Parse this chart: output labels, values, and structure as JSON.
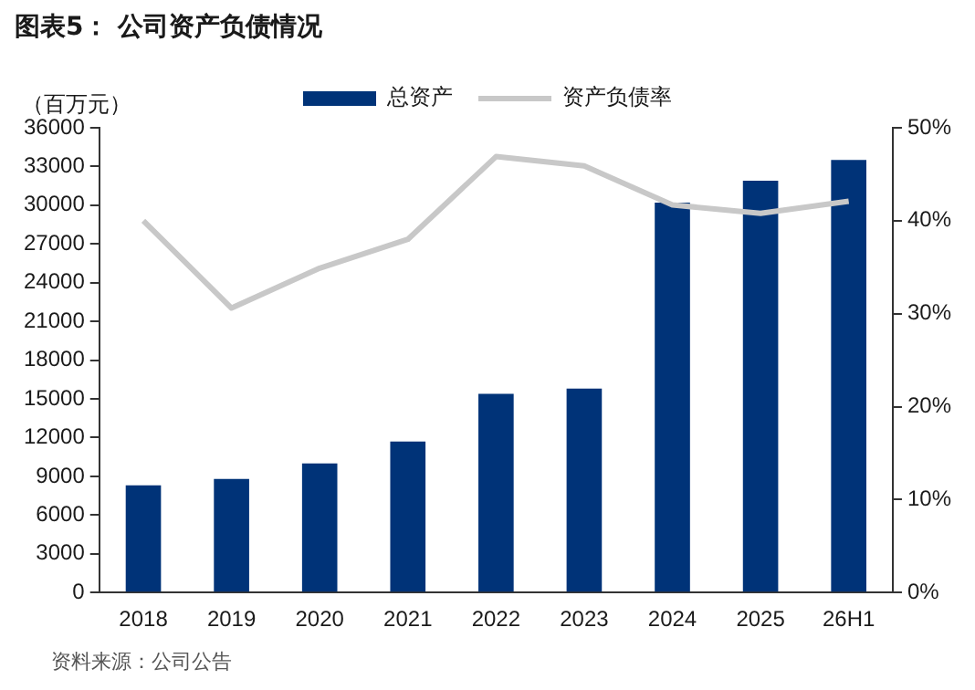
{
  "chart_data": {
    "type": "bar",
    "title": "图表5：  公司资产负债情况",
    "ylabel": "（百万元）",
    "categories": [
      "2018",
      "2019",
      "2020",
      "2021",
      "2022",
      "2023",
      "2024",
      "2025",
      "26H1"
    ],
    "series": [
      {
        "name": "总资产",
        "color": "#003378",
        "values": [
          8300,
          8800,
          10000,
          11700,
          15400,
          15800,
          30200,
          31900,
          33500
        ]
      },
      {
        "name": "资产负债率",
        "type": "line",
        "axis": "y2",
        "color": "#c8c8c8",
        "values": [
          40,
          30.6,
          34.9,
          38,
          46.9,
          45.9,
          41.7,
          40.8,
          42.1
        ]
      }
    ],
    "ylim": [
      0,
      36000
    ],
    "yticks": [
      0,
      3000,
      6000,
      9000,
      12000,
      15000,
      18000,
      21000,
      24000,
      27000,
      30000,
      33000,
      36000
    ],
    "y2lim": [
      0,
      50
    ],
    "y2ticks": [
      {
        "value": 0,
        "label": "0%"
      },
      {
        "value": 10,
        "label": "10%"
      },
      {
        "value": 20,
        "label": "20%"
      },
      {
        "value": 30,
        "label": "30%"
      },
      {
        "value": 40,
        "label": "40%"
      },
      {
        "value": 50,
        "label": "50%"
      }
    ],
    "legend": "top",
    "marker": "none",
    "grid": false,
    "annotations": [
      "资料来源：公司公告"
    ]
  }
}
